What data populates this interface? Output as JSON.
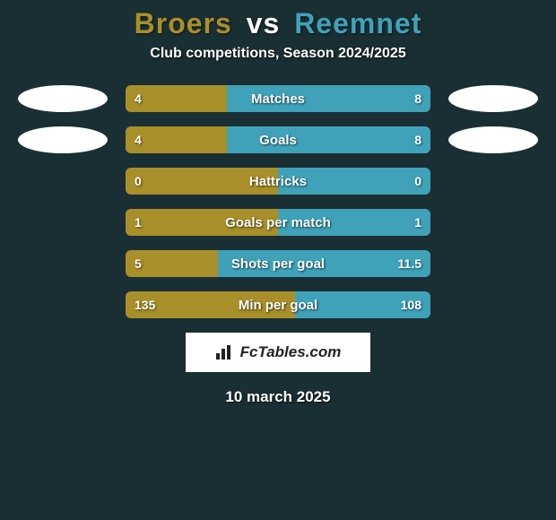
{
  "background_color": "#1a2f33",
  "title": {
    "player1": "Broers",
    "vs": "vs",
    "player2": "Reemnet",
    "color_p1": "#a88f2a",
    "color_vs": "#ffffff",
    "color_p2": "#3fa2b8"
  },
  "subtitle": "Club competitions, Season 2024/2025",
  "bar_style": {
    "left_color": "#a88f2a",
    "right_color": "#3fa2b8",
    "border_radius": 6,
    "height": 30
  },
  "rows": [
    {
      "label": "Matches",
      "left": "4",
      "right": "8",
      "left_pct": 33.3,
      "show_ovals": true
    },
    {
      "label": "Goals",
      "left": "4",
      "right": "8",
      "left_pct": 33.3,
      "show_ovals": true
    },
    {
      "label": "Hattricks",
      "left": "0",
      "right": "0",
      "left_pct": 50.0,
      "show_ovals": false
    },
    {
      "label": "Goals per match",
      "left": "1",
      "right": "1",
      "left_pct": 50.0,
      "show_ovals": false
    },
    {
      "label": "Shots per goal",
      "left": "5",
      "right": "11.5",
      "left_pct": 30.3,
      "show_ovals": false
    },
    {
      "label": "Min per goal",
      "left": "135",
      "right": "108",
      "left_pct": 55.6,
      "show_ovals": false
    }
  ],
  "brand": "FcTables.com",
  "date": "10 march 2025"
}
